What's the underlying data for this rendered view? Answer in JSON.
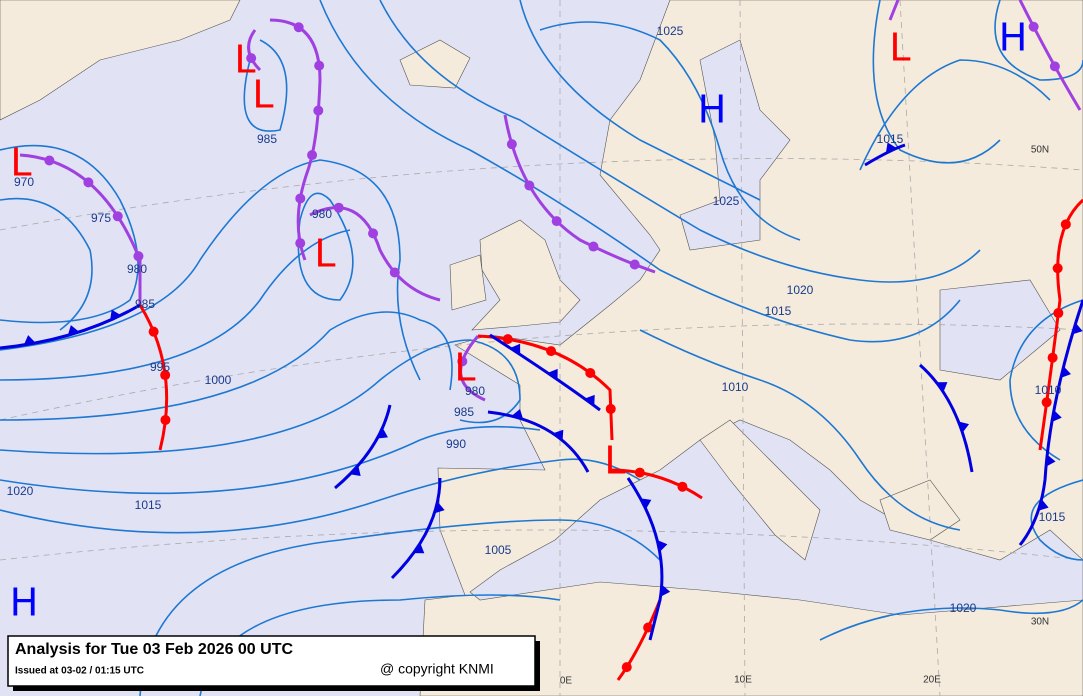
{
  "caption": {
    "title": "Analysis for Tue 03 Feb 2026 00 UTC",
    "issued": "Issued at 03-02 / 01:15 UTC",
    "copyright": "@ copyright KNMI"
  },
  "pressure_centers": [
    {
      "label": "L",
      "color": "#ff0000"
    },
    {
      "label": "L",
      "color": "#ff0000"
    },
    {
      "label": "L",
      "color": "#ff0000"
    },
    {
      "label": "L",
      "color": "#ff0000"
    },
    {
      "label": "L",
      "color": "#ff0000"
    },
    {
      "label": "L",
      "color": "#ff0000"
    },
    {
      "label": "L",
      "color": "#ff0000"
    },
    {
      "label": "H",
      "color": "#0000ff"
    },
    {
      "label": "H",
      "color": "#0000ff"
    },
    {
      "label": "H",
      "color": "#0000ff"
    }
  ],
  "isobar_labels": [
    "1025",
    "985",
    "970",
    "975",
    "980",
    "980",
    "985",
    "995",
    "1000",
    "1015",
    "1025",
    "1020",
    "1015",
    "1010",
    "980",
    "985",
    "990",
    "1020",
    "1015",
    "1005",
    "1010",
    "1015",
    "1020"
  ],
  "graticule_labels": [
    "50N",
    "30N",
    "0E",
    "10E",
    "20E"
  ]
}
